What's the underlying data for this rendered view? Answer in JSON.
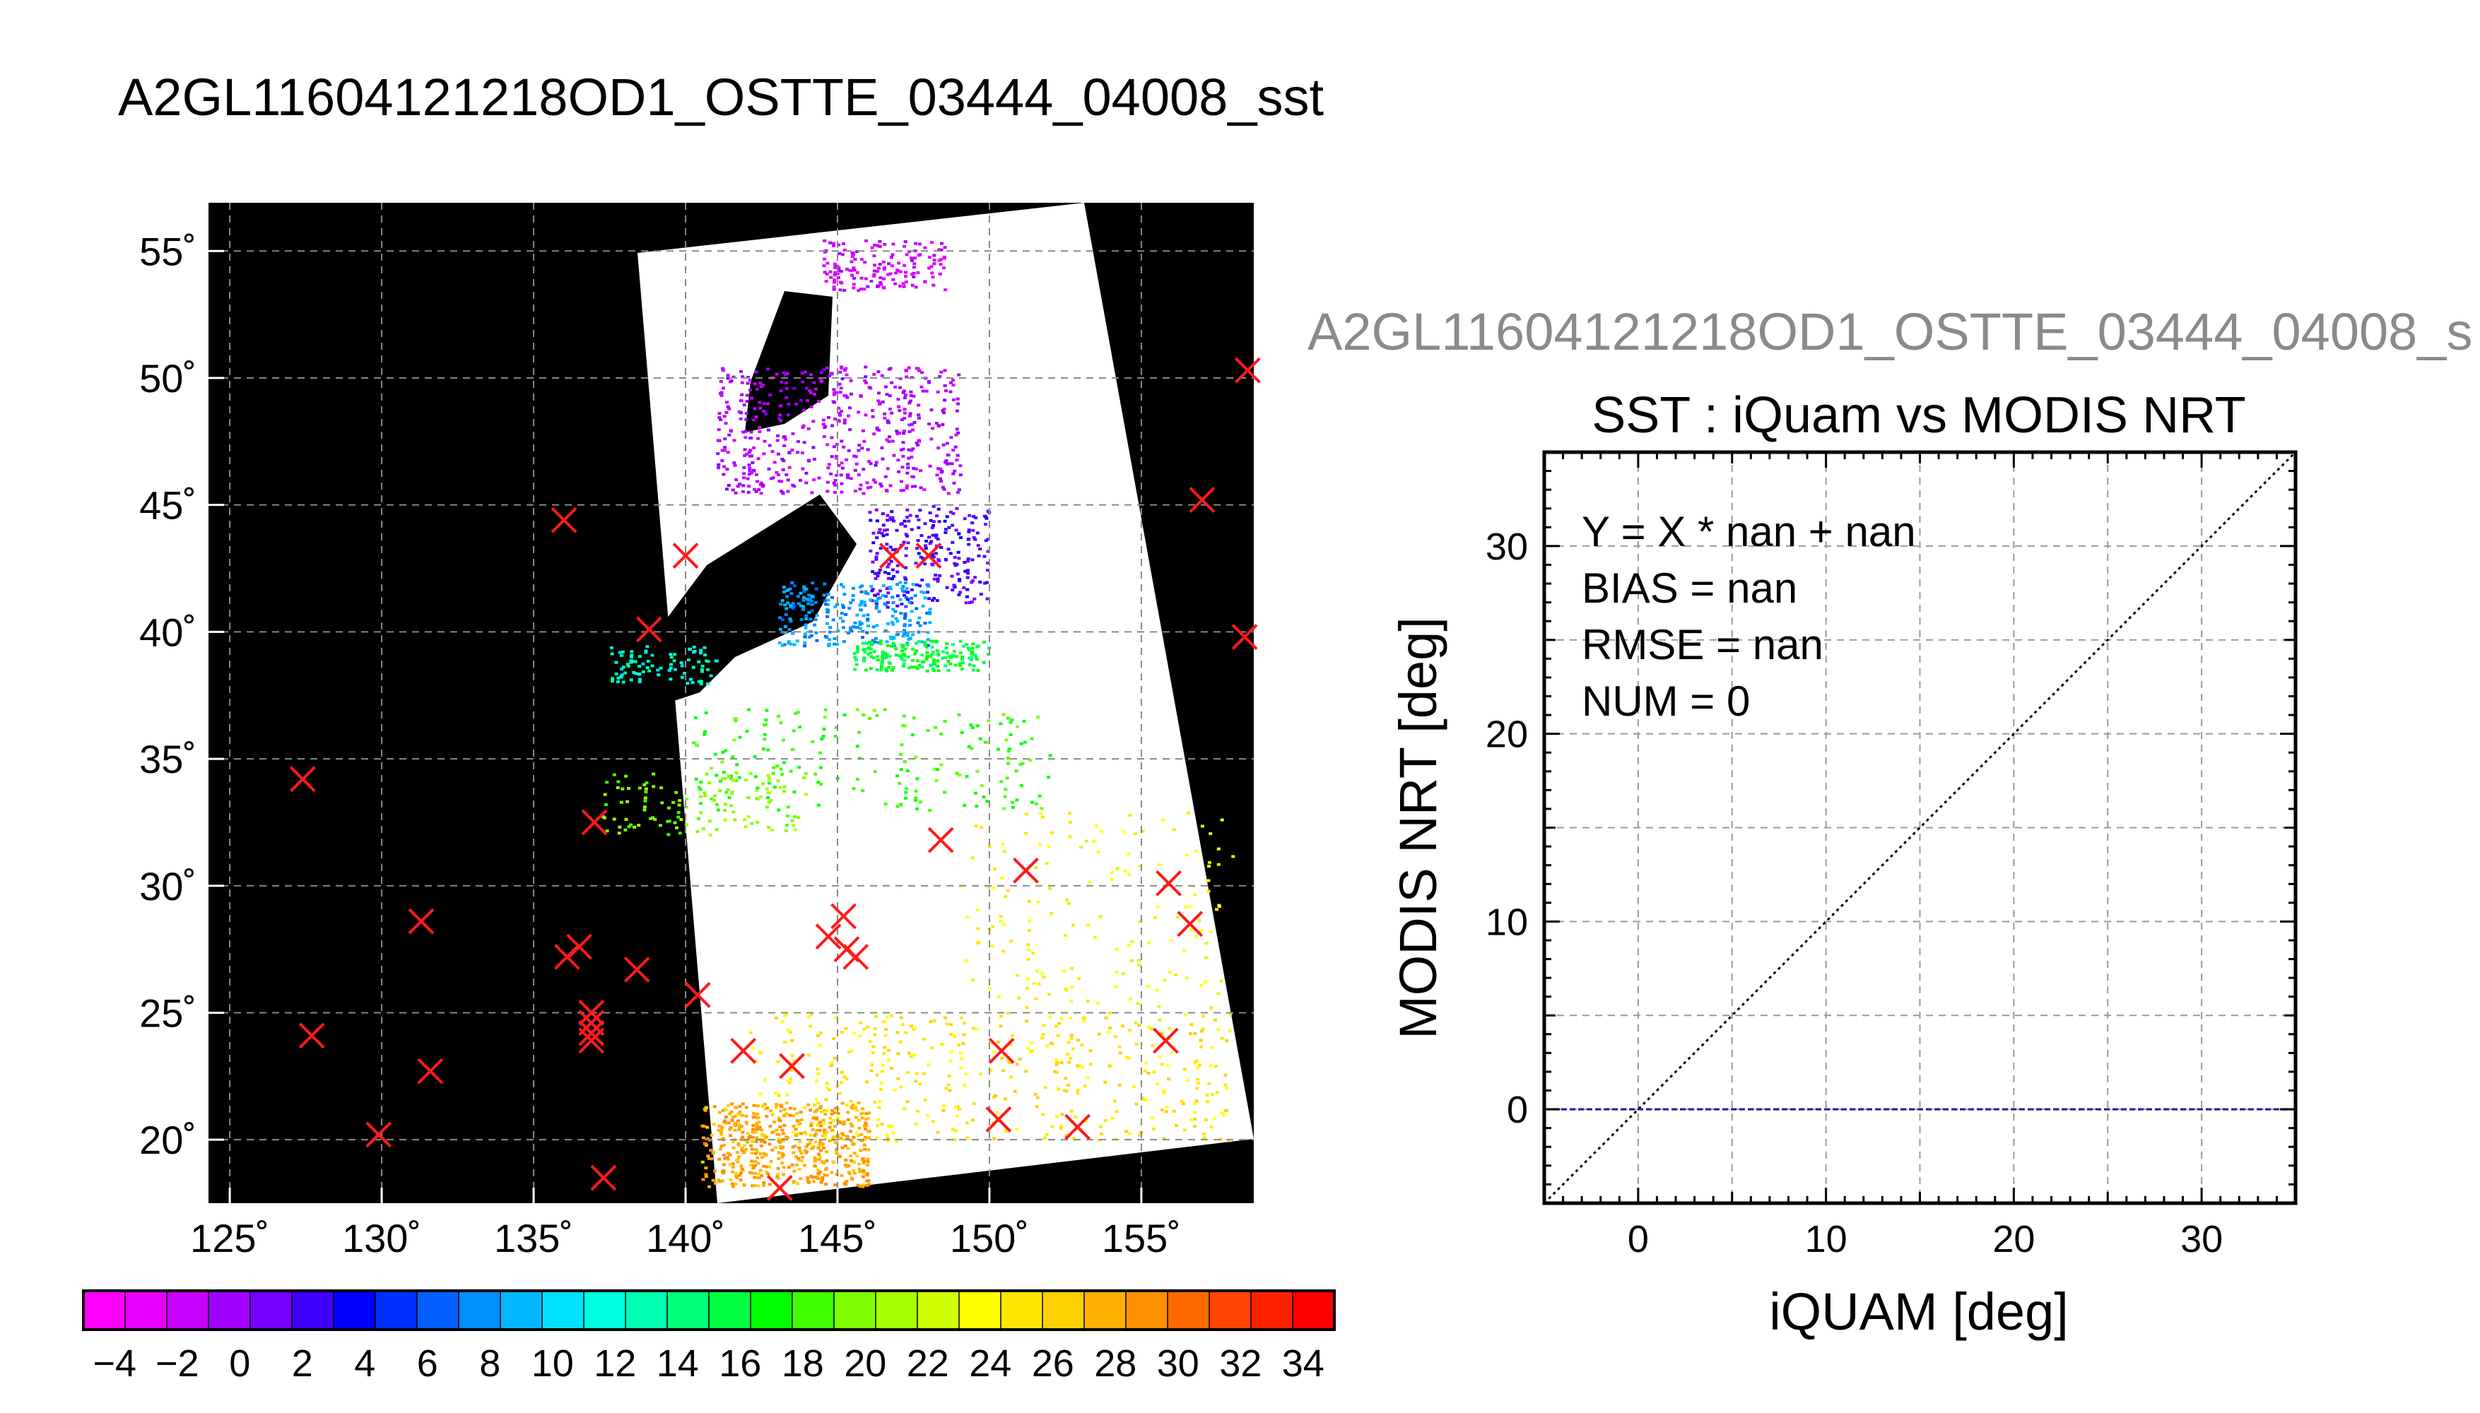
{
  "title": "A2GL11604121218OD1_OSTTE_03444_04008_sst",
  "map": {
    "lon_ticks": [
      125,
      130,
      135,
      140,
      145,
      150,
      155
    ],
    "lon_labels": [
      "125˚",
      "130˚",
      "135˚",
      "140˚",
      "145˚",
      "150˚",
      "155˚"
    ],
    "lat_ticks": [
      20,
      25,
      30,
      35,
      40,
      45,
      50,
      55
    ],
    "lat_labels": [
      "20˚",
      "25˚",
      "30˚",
      "35˚",
      "40˚",
      "45˚",
      "50˚",
      "55˚"
    ],
    "lon_range": [
      124.3,
      158.7
    ],
    "lat_range": [
      17.5,
      56.9
    ],
    "background_color": "#000000",
    "swath_color": "#ffffff",
    "grid": true,
    "marker_color": "#ff1a1a",
    "markers": [
      {
        "lon": 136.0,
        "lat": 44.4
      },
      {
        "lon": 140.0,
        "lat": 43.0
      },
      {
        "lon": 146.8,
        "lat": 43.0
      },
      {
        "lon": 148.0,
        "lat": 43.0
      },
      {
        "lon": 138.8,
        "lat": 40.1
      },
      {
        "lon": 158.5,
        "lat": 50.3
      },
      {
        "lon": 157.0,
        "lat": 45.2
      },
      {
        "lon": 158.4,
        "lat": 39.8
      },
      {
        "lon": 127.4,
        "lat": 34.2
      },
      {
        "lon": 137.0,
        "lat": 32.5
      },
      {
        "lon": 148.4,
        "lat": 31.8
      },
      {
        "lon": 151.2,
        "lat": 30.6
      },
      {
        "lon": 155.9,
        "lat": 30.1
      },
      {
        "lon": 156.6,
        "lat": 28.5
      },
      {
        "lon": 131.3,
        "lat": 28.6
      },
      {
        "lon": 136.1,
        "lat": 27.2
      },
      {
        "lon": 136.5,
        "lat": 27.6
      },
      {
        "lon": 138.4,
        "lat": 26.7
      },
      {
        "lon": 144.7,
        "lat": 28.0
      },
      {
        "lon": 145.2,
        "lat": 28.8
      },
      {
        "lon": 145.3,
        "lat": 27.5
      },
      {
        "lon": 145.6,
        "lat": 27.2
      },
      {
        "lon": 140.4,
        "lat": 25.7
      },
      {
        "lon": 136.9,
        "lat": 25.0
      },
      {
        "lon": 136.9,
        "lat": 24.6
      },
      {
        "lon": 136.9,
        "lat": 24.2
      },
      {
        "lon": 136.9,
        "lat": 23.9
      },
      {
        "lon": 127.7,
        "lat": 24.1
      },
      {
        "lon": 131.6,
        "lat": 22.7
      },
      {
        "lon": 141.9,
        "lat": 23.5
      },
      {
        "lon": 143.5,
        "lat": 22.9
      },
      {
        "lon": 150.4,
        "lat": 23.5
      },
      {
        "lon": 155.8,
        "lat": 23.9
      },
      {
        "lon": 129.9,
        "lat": 20.2
      },
      {
        "lon": 150.3,
        "lat": 20.8
      },
      {
        "lon": 152.9,
        "lat": 20.5
      },
      {
        "lon": 137.3,
        "lat": 18.5
      },
      {
        "lon": 143.1,
        "lat": 18.1
      }
    ]
  },
  "colorbar": {
    "labels": [
      "−4",
      "−2",
      "0",
      "2",
      "4",
      "6",
      "8",
      "10",
      "12",
      "14",
      "16",
      "18",
      "20",
      "22",
      "24",
      "26",
      "28",
      "30",
      "32",
      "34"
    ],
    "min": -5,
    "max": 35,
    "colors": [
      "#ff00ff",
      "#e600ff",
      "#c800ff",
      "#a000ff",
      "#7800ff",
      "#4000ff",
      "#0000ff",
      "#0030ff",
      "#0060ff",
      "#0090ff",
      "#00b8ff",
      "#00e0ff",
      "#00ffe0",
      "#00ffb0",
      "#00ff78",
      "#00ff40",
      "#00ff00",
      "#40ff00",
      "#80ff00",
      "#a8ff00",
      "#d0ff00",
      "#ffff00",
      "#ffe600",
      "#ffd000",
      "#ffb000",
      "#ff9000",
      "#ff6a00",
      "#ff4400",
      "#ff2200",
      "#ff0000"
    ]
  },
  "chart_data": {
    "type": "scatter",
    "suptitle": "A2GL11604121218OD1_OSTTE_03444_04008_s",
    "title": "SST : iQuam vs MODIS NRT",
    "xlabel": "iQUAM [deg]",
    "ylabel": "MODIS NRT [deg]",
    "xlim": [
      -5,
      35
    ],
    "ylim": [
      -5,
      35
    ],
    "xticks": [
      0,
      10,
      20,
      30
    ],
    "yticks": [
      0,
      10,
      20,
      30
    ],
    "grid": true,
    "annotations": [
      "Y = X * nan + nan",
      "BIAS = nan",
      "RMSE = nan",
      "NUM = 0"
    ],
    "series": [
      {
        "style": "dotted",
        "color": "#000000",
        "x": [
          -5,
          35
        ],
        "y": [
          -5,
          35
        ]
      },
      {
        "style": "dashed",
        "color": "#1a1aa6",
        "x": [
          -5,
          35
        ],
        "y": [
          0,
          0
        ]
      }
    ],
    "points": []
  }
}
